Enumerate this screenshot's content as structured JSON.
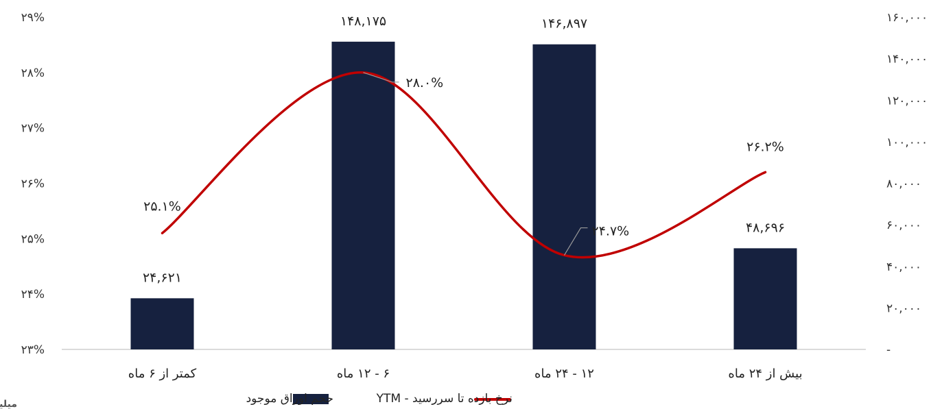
{
  "chart_data": {
    "type": "bar",
    "title": "",
    "unit_label": "میلیاردتومان",
    "categories": [
      "کمتر از ۶ ماه",
      "۶ - ۱۲ ماه",
      "۱۲ - ۲۴ ماه",
      "بیش از ۲۴ ماه"
    ],
    "series": [
      {
        "name": "حجم اوراق موجود",
        "type": "bar",
        "axis": "right",
        "color": "#16213f",
        "values": [
          24621,
          148175,
          146897,
          48696
        ],
        "labels": [
          "۲۴,۶۲۱",
          "۱۴۸,۱۷۵",
          "۱۴۶,۸۹۷",
          "۴۸,۶۹۶"
        ]
      },
      {
        "name": "نرخ بازده تا سررسید - YTM",
        "type": "line",
        "axis": "left",
        "color": "#c00000",
        "values": [
          25.1,
          28.0,
          24.7,
          26.2
        ],
        "labels": [
          "۲۵.۱%",
          "۲۸.۰%",
          "۲۴.۷%",
          "۲۶.۲%"
        ]
      }
    ],
    "y_left": {
      "range": [
        23,
        29
      ],
      "ticks": [
        "۲۳%",
        "۲۴%",
        "۲۵%",
        "۲۶%",
        "۲۷%",
        "۲۸%",
        "۲۹%"
      ]
    },
    "y_right": {
      "range": [
        0,
        160000
      ],
      "ticks": [
        "-",
        "۲۰,۰۰۰",
        "۴۰,۰۰۰",
        "۶۰,۰۰۰",
        "۸۰,۰۰۰",
        "۱۰۰,۰۰۰",
        "۱۲۰,۰۰۰",
        "۱۴۰,۰۰۰",
        "۱۶۰,۰۰۰"
      ]
    },
    "grid": false,
    "legend_position": "bottom"
  }
}
